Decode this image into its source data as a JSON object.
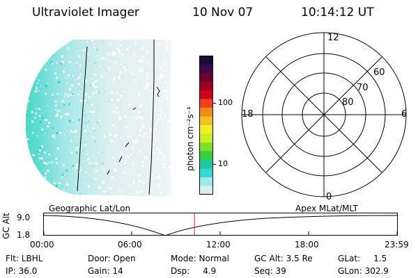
{
  "header": {
    "instrument": "Ultraviolet Imager",
    "date": "10 Nov 07",
    "time": "10:14:12 UT"
  },
  "colorbar": {
    "label": "photon cm⁻²s⁻¹",
    "ticks": [
      "100",
      "10"
    ],
    "colors": [
      "#1a0a3a",
      "#3a0a4a",
      "#6b0030",
      "#a00020",
      "#d0001a",
      "#f04020",
      "#f08c10",
      "#f0c020",
      "#f0f020",
      "#c8f020",
      "#80e020",
      "#30d040",
      "#20c8a0",
      "#30d8d8",
      "#a0e8e8",
      "#d8f0f0"
    ]
  },
  "polar_plot": {
    "mlt_labels": [
      "12",
      "6",
      "0",
      "18"
    ],
    "lat_labels": [
      "60",
      "70",
      "80"
    ]
  },
  "timeline": {
    "ylabel": "GC Alt",
    "y_ticks": [
      "9.0",
      "1.8"
    ],
    "left_title": "Geographic Lat/Lon",
    "right_title": "Apex MLat/MLT",
    "x_ticks": [
      "00:00",
      "06:00",
      "12:00",
      "18:00",
      "23:59"
    ],
    "current_time_fraction": 0.4265,
    "marker_color": "#d02020"
  },
  "info": {
    "flt": "Flt: LBHL",
    "ip": "IP: 36.0",
    "door": "Door: Open",
    "gain": "Gain: 14",
    "mode": "Mode: Normal",
    "dsp": "Dsp:     4.9",
    "gcalt": "GC Alt: 3.5 Re",
    "seq": "Seq: 39",
    "glat": "GLat:     1.5",
    "glon": "GLon: 302.9"
  }
}
